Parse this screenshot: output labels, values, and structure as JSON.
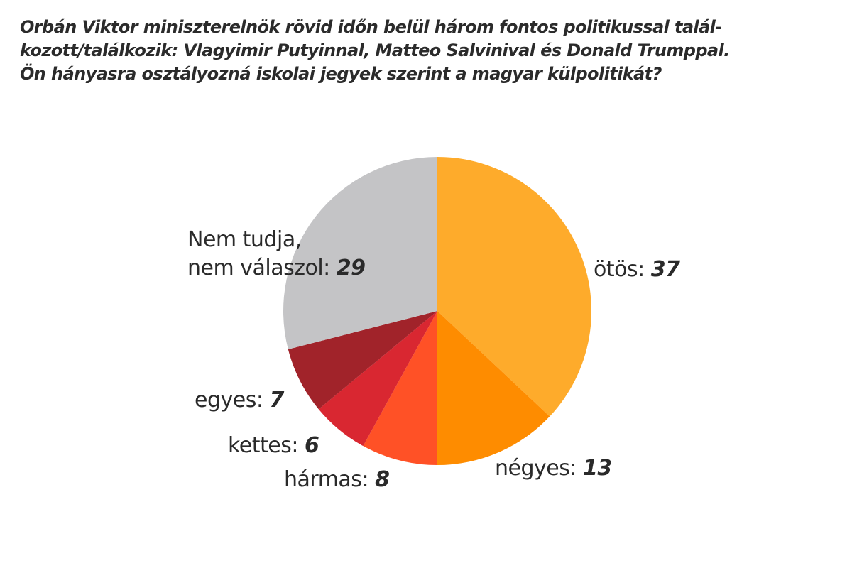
{
  "title": {
    "lines": [
      "Orbán Viktor miniszterelnök rövid időn belül három fontos politikussal talál-",
      "kozott/találkozik: Vlagyimir Putyinnal, Matteo Salvinival és Donald Trumppal.",
      "Ön hányasra osztályozná iskolai jegyek szerint a magyar külpolitikát?"
    ]
  },
  "labels": {
    "otos": {
      "text": "ötös:",
      "value": "37"
    },
    "negyes": {
      "text": "négyes:",
      "value": "13"
    },
    "harmas": {
      "text": "hármas:",
      "value": "8"
    },
    "kettes": {
      "text": "kettes:",
      "value": "6"
    },
    "egyes": {
      "text": "egyes:",
      "value": "7"
    },
    "nemtudja": {
      "line1": "Nem tudja,",
      "text": "nem válaszol:",
      "value": "29"
    }
  },
  "chart_data": {
    "type": "pie",
    "title": "Orbán Viktor miniszterelnök rövid időn belül három fontos politikussal találkozott/találkozik: Vlagyimir Putyinnal, Matteo Salvinival és Donald Trumppal. Ön hányasra osztályozná iskolai jegyek szerint a magyar külpolitikát?",
    "categories": [
      "ötös",
      "négyes",
      "hármas",
      "kettes",
      "egyes",
      "Nem tudja, nem válaszol"
    ],
    "values": [
      37,
      13,
      8,
      6,
      7,
      29
    ],
    "colors": [
      "#FEAB2B",
      "#FE8C00",
      "#FF5126",
      "#D92731",
      "#A1232A",
      "#C4C4C6"
    ],
    "start_angle": "12 o'clock",
    "direction": "clockwise",
    "unit": "%",
    "legend": "none (direct labels)"
  }
}
